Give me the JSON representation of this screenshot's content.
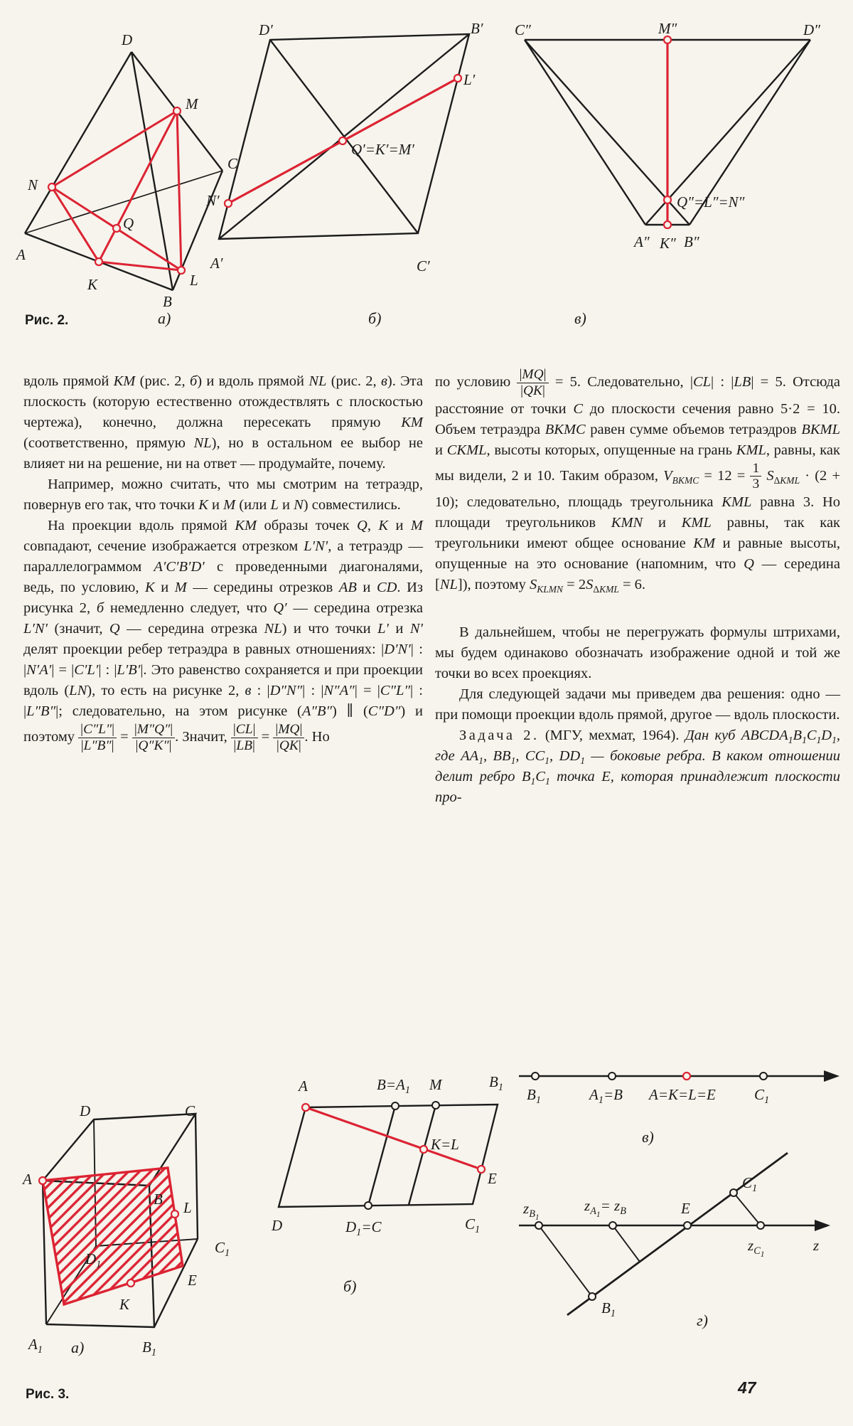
{
  "page_number": "47",
  "colors": {
    "paper": "#f6f4ec",
    "ink": "#1c1c1c",
    "red": "#dc2333"
  },
  "fig2": {
    "caption": "Рис. 2.",
    "a": {
      "sub": "а)",
      "labels": {
        "D": "D",
        "M": "M",
        "C": "C",
        "N": "N",
        "A": "A",
        "Q": "Q",
        "K": "K",
        "L": "L",
        "B": "B"
      }
    },
    "b": {
      "sub": "б)",
      "labels": {
        "Dp": "D′",
        "Bp": "B′",
        "Lp": "L′",
        "Np": "N′",
        "Ap": "A′",
        "Cp": "C′",
        "QKM": "Q′=K′=M′"
      }
    },
    "v": {
      "sub": "в)",
      "labels": {
        "Cpp": "C″",
        "Mpp": "M″",
        "Dpp": "D″",
        "QLN": "Q″=L″=N″",
        "App": "A″",
        "Kpp": "K″",
        "Bpp": "B″"
      }
    }
  },
  "fig3": {
    "caption": "Рис. 3.",
    "a": {
      "sub": "а)",
      "labels": {
        "D": "D",
        "C": "C",
        "A": "A",
        "B": "B",
        "L": "L",
        "D1": "D<sub>1</sub>",
        "C1": "C<sub>1</sub>",
        "K": "K",
        "E": "E",
        "A1": "A<sub>1</sub>",
        "B1": "B<sub>1</sub>"
      }
    },
    "b": {
      "sub": "б)",
      "labels": {
        "A": "A",
        "BA1": "B=A<sub>1</sub>",
        "M": "M",
        "B1": "B<sub>1</sub>",
        "KL": "K=L",
        "E": "E",
        "D": "D",
        "D1C": "D<sub>1</sub>=C",
        "C1": "C<sub>1</sub>"
      }
    },
    "v": {
      "sub": "в)",
      "labels": {
        "B1": "B<sub>1</sub>",
        "A1B": "A<sub>1</sub>=B",
        "AKLE": "A=K=L=E",
        "C1": "C<sub>1</sub>"
      }
    },
    "g": {
      "sub": "г)",
      "labels": {
        "zB1": "z<sub>B<sub>1</sub></sub>",
        "zA1zB": "z<sub>A<sub>1</sub></sub>= z<sub>B</sub>",
        "E": "E",
        "zC1": "z<sub>C<sub>1</sub></sub>",
        "z": "z",
        "B1": "B<sub>1</sub>",
        "C1": "C<sub>1</sub>"
      }
    }
  },
  "text": {
    "left": [
      "вдоль прямой <i>KM</i> (рис. 2, <i>б</i>) и вдоль прямой <i>NL</i> (рис. 2, <i>в</i>). Эта плоскость (которую естественно отождествлять с плоскостью чертежа), конечно, должна пересекать прямую <i>KM</i> (соответственно, прямую <i>NL</i>), но в остальном ее выбор не влияет ни на решение, ни на ответ — продумайте, почему.",
      "Например, можно считать, что мы смотрим на тетраэдр, повернув его так, что точки <i>K</i> и <i>M</i> (или <i>L</i> и <i>N</i>) совместились.",
      "На проекции вдоль прямой <i>KM</i> образы точек <i>Q</i>, <i>K</i> и <i>M</i> совпадают, сечение изображается отрезком <i>L′N′</i>, а тетраэдр — параллелограммом <i>A′C′B′D′</i> с проведенными диагоналями, ведь, по условию, <i>K</i> и <i>M</i> — середины отрезков <i>AB</i> и <i>CD</i>. Из рисунка 2, <i>б</i> немедленно следует, что <i>Q′</i> — середина отрезка <i>L′N′</i> (значит, <i>Q</i> — середина отрезка <i>NL</i>) и что точки <i>L′</i> и <i>N′</i> делят проекции ребер тетраэдра в равных отношениях: |<i>D′N′</i>| : |<i>N′A′</i>| = |<i>C′L′</i>| : |<i>L′B′</i>|. Это равенство сохраняется и при проекции вдоль (<i>LN</i>), то есть на рисунке 2, <i>в</i> : |<i>D″N″</i>| : |<i>N″A″</i>| = |<i>C″L″</i>| : |<i>L″B″</i>|; следовательно, на этом рисунке (<i>A″B″</i>) ∥ (<i>C″D″</i>) и поэтому <span class='fr'><span class='n'>|<i>C″L″</i>|</span><span class='d'>|<i>L″B″</i>|</span></span> = <span class='fr'><span class='n'>|<i>M″Q″</i>|</span><span class='d'>|<i>Q″K″</i>|</span></span>. Значит, <span class='fr'><span class='n'>|<i>CL</i>|</span><span class='d'>|<i>LB</i>|</span></span> = <span class='fr'><span class='n'>|<i>MQ</i>|</span><span class='d'>|<i>QK</i>|</span></span>. Но"
    ],
    "right": [
      "по условию <span class='fr'><span class='n'>|<i>MQ</i>|</span><span class='d'>|<i>QK</i>|</span></span> = 5. Следовательно, |<i>CL</i>| : |<i>LB</i>| = 5. Отсюда расстояние от точки <i>C</i> до плоскости сечения равно 5·2 = 10. Объем тетраэдра <i>BKMC</i> равен сумме объемов тетраэдров <i>BKML</i> и <i>CKML</i>, высоты которых, опущенные на грань <i>KML</i>, равны, как мы видели, 2 и 10. Таким образом, <i>V</i><sub><i>BKMC</i></sub> = 12 = <span class='fr'><span class='n'>1</span><span class='d'>3</span></span> <i>S</i><sub>Δ<i>KML</i></sub> · (2 + 10); следовательно, площадь треугольника <i>KML</i> равна 3. Но площади треугольников <i>KMN</i> и <i>KML</i> равны, так как треугольники имеют общее основание <i>KM</i> и равные высоты, опущенные на это основание (напомним, что <i>Q</i> — середина [<i>NL</i>]), поэтому <i>S</i><sub><i>KLMN</i></sub> = 2<i>S</i><sub>Δ<i>KML</i></sub> = 6.",
      "В дальнейшем, чтобы не перегружать формулы штрихами, мы будем одинаково обозначать изображение одной и той же точки во всех проекциях.",
      "Для следующей задачи мы приведем два решения: одно — при помощи проекции вдоль прямой, другое — вдоль плоскости.",
      "<span class='lsp'>Задача 2.</span> (МГУ, мехмат, 1964). <i>Дан куб ABCDA<sub>1</sub>B<sub>1</sub>C<sub>1</sub>D<sub>1</sub>, где AA<sub>1</sub>, BB<sub>1</sub>, CC<sub>1</sub>, DD<sub>1</sub> — боковые ребра. В каком отношении делит ребро B<sub>1</sub>C<sub>1</sub> точка E, которая принадлежит плоскости про-</i>"
    ]
  }
}
